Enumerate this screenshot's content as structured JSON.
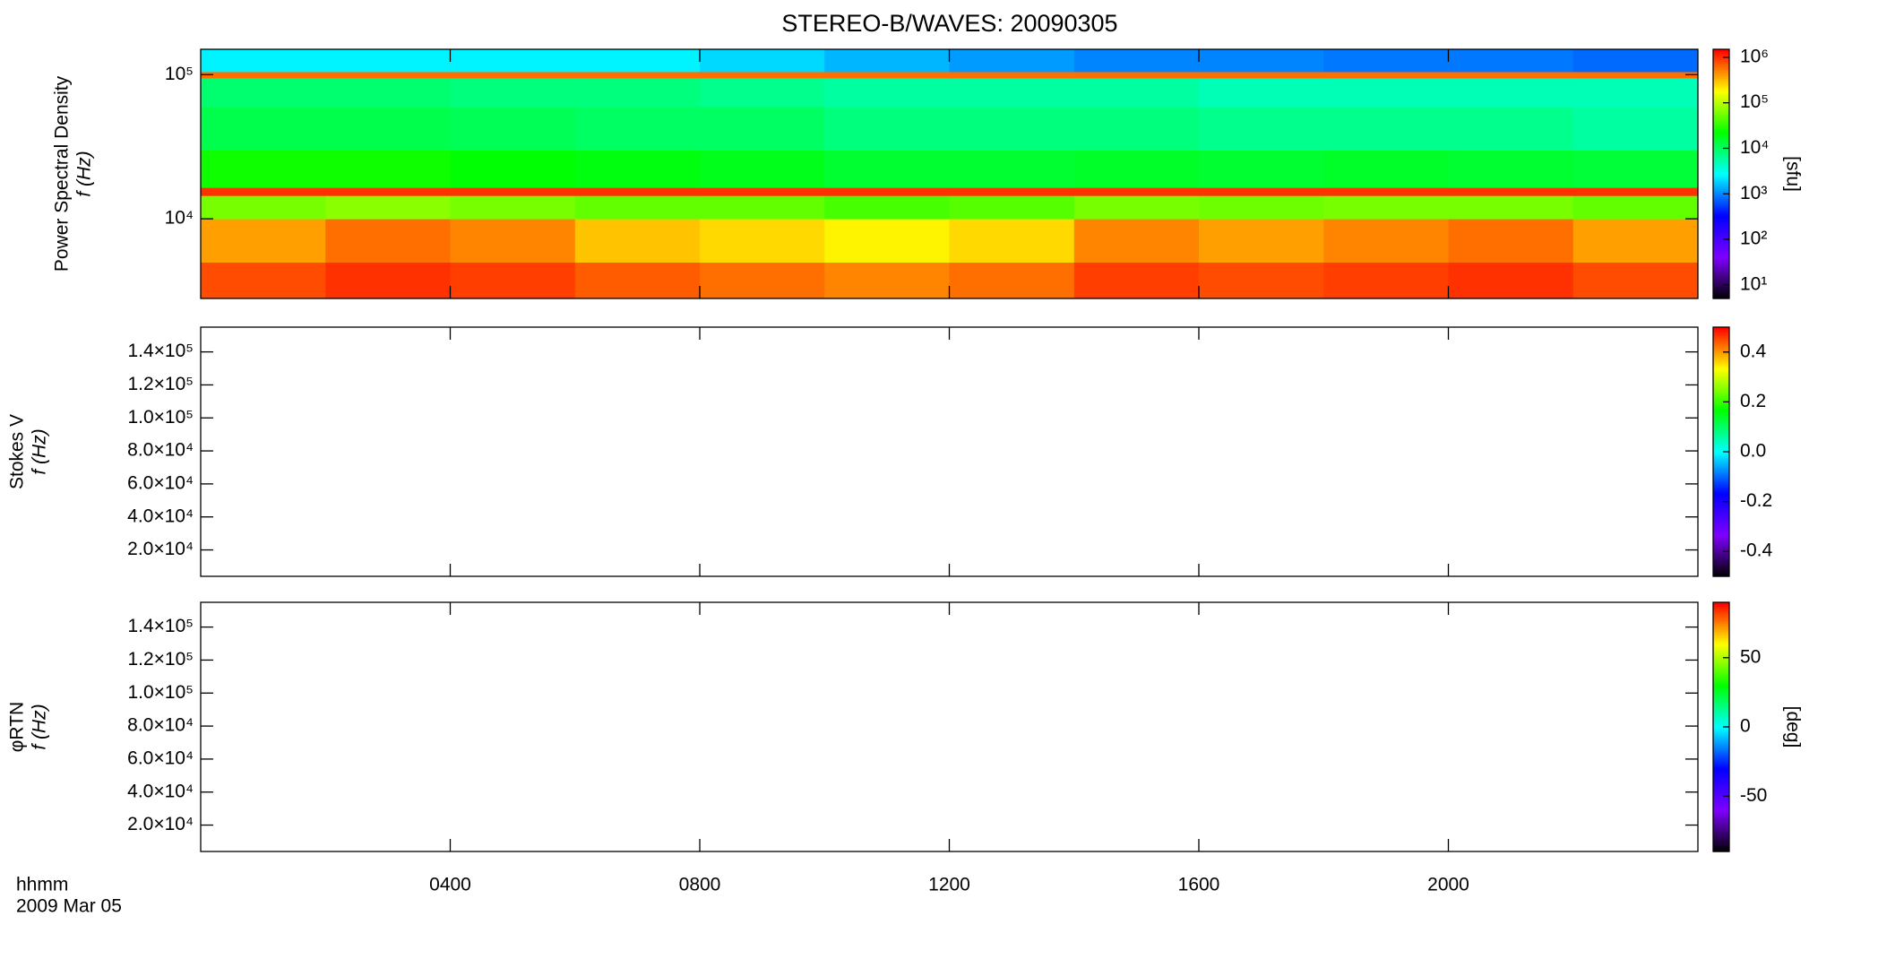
{
  "chart_data": [
    {
      "type": "heatmap",
      "title": "STEREO-B/WAVES: 20090305",
      "ylabel": [
        "Power Spectral Density",
        "f (Hz)"
      ],
      "ylog": true,
      "ylim": [
        2800,
        150000
      ],
      "yticks": [
        {
          "value": 10000,
          "label": "10⁴"
        },
        {
          "value": 100000,
          "label": "10⁵"
        }
      ],
      "xbins": [
        0,
        2,
        4,
        6,
        8,
        10,
        12,
        14,
        16,
        18,
        20,
        22,
        24
      ],
      "ybins": [
        2800,
        5000,
        10000,
        14500,
        16500,
        30000,
        60000,
        95000,
        105000,
        150000
      ],
      "z": [
        [
          800000,
          1000000,
          900000,
          700000,
          600000,
          500000,
          600000,
          900000,
          800000,
          900000,
          1000000,
          800000
        ],
        [
          400000,
          600000,
          500000,
          300000,
          250000,
          200000,
          250000,
          500000,
          400000,
          500000,
          600000,
          400000
        ],
        [
          60000,
          70000,
          60000,
          50000,
          50000,
          40000,
          45000,
          60000,
          55000,
          60000,
          60000,
          50000
        ],
        [
          1000000,
          1000000,
          1000000,
          1000000,
          1000000,
          1000000,
          1000000,
          1000000,
          1000000,
          1000000,
          1000000,
          1000000
        ],
        [
          25000,
          25000,
          22000,
          20000,
          18000,
          15000,
          15000,
          16000,
          15000,
          16000,
          15000,
          14000
        ],
        [
          12000,
          12000,
          11000,
          10000,
          10000,
          8000,
          8000,
          8000,
          7000,
          7000,
          7000,
          6000
        ],
        [
          9000,
          9000,
          8000,
          8000,
          7000,
          6000,
          6000,
          6000,
          5000,
          5000,
          5000,
          5000
        ],
        [
          600000,
          600000,
          600000,
          600000,
          600000,
          600000,
          600000,
          600000,
          600000,
          600000,
          600000,
          600000
        ],
        [
          2500,
          2500,
          2500,
          2500,
          2000,
          1500,
          1200,
          1000,
          1000,
          900,
          900,
          800
        ]
      ],
      "clog": true,
      "clim": [
        5,
        1500000
      ],
      "cticks": [
        {
          "value": 10,
          "label": "10¹"
        },
        {
          "value": 100,
          "label": "10²"
        },
        {
          "value": 1000,
          "label": "10³"
        },
        {
          "value": 10000,
          "label": "10⁴"
        },
        {
          "value": 100000,
          "label": "10⁵"
        },
        {
          "value": 1000000,
          "label": "10⁶"
        }
      ],
      "clabel": "[sfu]",
      "colormap": [
        "#000000",
        "#7f00ff",
        "#0000ff",
        "#00ffff",
        "#00ff00",
        "#ffff00",
        "#ff0000"
      ]
    },
    {
      "type": "heatmap",
      "ylabel": [
        "Stokes V",
        "f (Hz)"
      ],
      "ylog": false,
      "ylim": [
        4000,
        155000
      ],
      "yticks": [
        {
          "value": 20000,
          "label": "2.0×10⁴"
        },
        {
          "value": 40000,
          "label": "4.0×10⁴"
        },
        {
          "value": 60000,
          "label": "6.0×10⁴"
        },
        {
          "value": 80000,
          "label": "8.0×10⁴"
        },
        {
          "value": 100000,
          "label": "1.0×10⁵"
        },
        {
          "value": 120000,
          "label": "1.2×10⁵"
        },
        {
          "value": 140000,
          "label": "1.4×10⁵"
        }
      ],
      "clog": false,
      "clim": [
        -0.5,
        0.5
      ],
      "cticks": [
        -0.4,
        -0.2,
        {
          "value": 0,
          "label": "0.0"
        },
        0.2,
        0.4
      ],
      "colormap": [
        "#000000",
        "#7f00ff",
        "#0000ff",
        "#00ffff",
        "#00ff00",
        "#ffff00",
        "#ff0000"
      ]
    },
    {
      "type": "heatmap",
      "ylabel": [
        "φRTN",
        "f (Hz)"
      ],
      "ylog": false,
      "ylim": [
        4000,
        155000
      ],
      "yticks": [
        {
          "value": 20000,
          "label": "2.0×10⁴"
        },
        {
          "value": 40000,
          "label": "4.0×10⁴"
        },
        {
          "value": 60000,
          "label": "6.0×10⁴"
        },
        {
          "value": 80000,
          "label": "8.0×10⁴"
        },
        {
          "value": 100000,
          "label": "1.0×10⁵"
        },
        {
          "value": 120000,
          "label": "1.2×10⁵"
        },
        {
          "value": 140000,
          "label": "1.4×10⁵"
        }
      ],
      "clog": false,
      "clim": [
        -90,
        90
      ],
      "cticks": [
        -50,
        0,
        50
      ],
      "clabel": "[deg]",
      "colormap": [
        "#000000",
        "#7f00ff",
        "#0000ff",
        "#00ffff",
        "#00ff00",
        "#ffff00",
        "#ff0000"
      ],
      "xlim": [
        0,
        24
      ],
      "xticks": [
        {
          "value": 4,
          "label": "0400"
        },
        {
          "value": 8,
          "label": "0800"
        },
        {
          "value": 12,
          "label": "1200"
        },
        {
          "value": 16,
          "label": "1600"
        },
        {
          "value": 20,
          "label": "2000"
        }
      ],
      "xlabel": "hhmm",
      "date": "2009 Mar 05"
    }
  ]
}
